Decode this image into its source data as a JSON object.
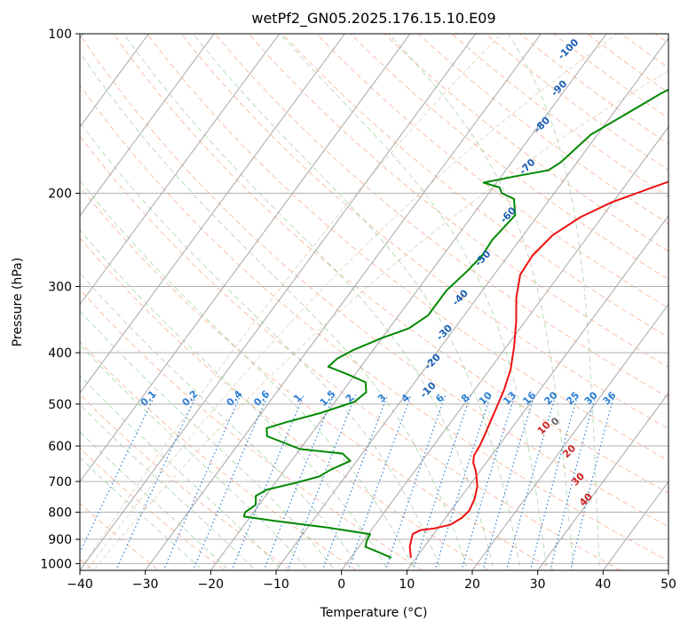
{
  "chart_data": {
    "type": "line",
    "title": "wetPf2_GN05.2025.176.15.10.E09",
    "xlabel": "Temperature (°C)",
    "ylabel": "Pressure (hPa)",
    "xlim": [
      -40,
      50
    ],
    "ylim": [
      1030,
      100
    ],
    "y_scale": "log",
    "x_ticks": [
      -40,
      -30,
      -20,
      -10,
      0,
      10,
      20,
      30,
      40,
      50
    ],
    "y_ticks": [
      100,
      200,
      300,
      400,
      500,
      600,
      700,
      800,
      900,
      1000
    ],
    "grid": true,
    "series": [
      {
        "role": "temperature",
        "color": "#ee1111",
        "points": [
          [
            9.2,
            975
          ],
          [
            7.8,
            930
          ],
          [
            6.8,
            880
          ],
          [
            7.5,
            865
          ],
          [
            9.5,
            858
          ],
          [
            11.5,
            845
          ],
          [
            12.5,
            820
          ],
          [
            12.8,
            795
          ],
          [
            12.3,
            755
          ],
          [
            11.3,
            715
          ],
          [
            9.4,
            670
          ],
          [
            8.0,
            645
          ],
          [
            7.3,
            625
          ],
          [
            7.1,
            600
          ],
          [
            6.6,
            570
          ],
          [
            6.0,
            540
          ],
          [
            5.3,
            505
          ],
          [
            4.5,
            470
          ],
          [
            3.2,
            430
          ],
          [
            1.2,
            390
          ],
          [
            -1.3,
            350
          ],
          [
            -4.0,
            315
          ],
          [
            -6.0,
            285
          ],
          [
            -6.3,
            262
          ],
          [
            -5.5,
            240
          ],
          [
            -3.3,
            222
          ],
          [
            -0.2,
            208
          ],
          [
            4.0,
            196
          ],
          [
            9.0,
            183
          ],
          [
            10.4,
            176
          ],
          [
            12.0,
            162
          ],
          [
            13.7,
            148
          ],
          [
            15.7,
            135
          ],
          [
            17.6,
            126
          ],
          [
            19.0,
            118
          ],
          [
            20.0,
            110
          ],
          [
            21.5,
            100
          ]
        ]
      },
      {
        "role": "dewpoint",
        "color": "#008800",
        "points": [
          [
            6.2,
            975
          ],
          [
            4.0,
            955
          ],
          [
            1.0,
            930
          ],
          [
            0.5,
            905
          ],
          [
            0.3,
            880
          ],
          [
            -7.0,
            855
          ],
          [
            -16.0,
            830
          ],
          [
            -21.0,
            815
          ],
          [
            -21.3,
            800
          ],
          [
            -20.5,
            775
          ],
          [
            -21.5,
            745
          ],
          [
            -20.5,
            725
          ],
          [
            -17.0,
            705
          ],
          [
            -14.0,
            685
          ],
          [
            -13.0,
            665
          ],
          [
            -11.0,
            640
          ],
          [
            -13.0,
            620
          ],
          [
            -20.0,
            608
          ],
          [
            -26.5,
            575
          ],
          [
            -27.5,
            555
          ],
          [
            -25.0,
            540
          ],
          [
            -21.0,
            520
          ],
          [
            -17.0,
            495
          ],
          [
            -16.3,
            475
          ],
          [
            -17.5,
            455
          ],
          [
            -21.0,
            440
          ],
          [
            -25.0,
            425
          ],
          [
            -24.5,
            410
          ],
          [
            -23.0,
            395
          ],
          [
            -20.0,
            375
          ],
          [
            -17.0,
            360
          ],
          [
            -15.5,
            340
          ],
          [
            -15.5,
            305
          ],
          [
            -14.5,
            280
          ],
          [
            -14.0,
            262
          ],
          [
            -14.2,
            245
          ],
          [
            -13.5,
            220
          ],
          [
            -15.5,
            205
          ],
          [
            -18.0,
            200
          ],
          [
            -19.0,
            195
          ],
          [
            -22.0,
            191
          ],
          [
            -18.0,
            186
          ],
          [
            -13.5,
            181
          ],
          [
            -12.5,
            175
          ],
          [
            -12.0,
            168
          ],
          [
            -11.0,
            155
          ],
          [
            -8.0,
            142
          ],
          [
            -5.0,
            130
          ],
          [
            -1.0,
            118
          ],
          [
            1.0,
            110
          ],
          [
            4.0,
            100
          ]
        ]
      }
    ],
    "dry_adiabat_color": "#f4a582",
    "moist_adiabat_color": "#88c888",
    "mixing_ratio_color": "#2c7fd6",
    "height_label_color": "#1a5fb4",
    "height_labels": [
      "-100",
      "-90",
      "-80",
      "-70",
      "-60",
      "-50",
      "-40",
      "-30",
      "-20",
      "-10",
      "0",
      "10",
      "20",
      "30",
      "40"
    ],
    "mixing_ratio_labels": [
      "0.1",
      "0.2",
      "0.4",
      "0.6",
      "1",
      "1.5",
      "2",
      "3",
      "4",
      "6",
      "8",
      "10",
      "13",
      "16",
      "20",
      "25",
      "30",
      "36"
    ]
  }
}
